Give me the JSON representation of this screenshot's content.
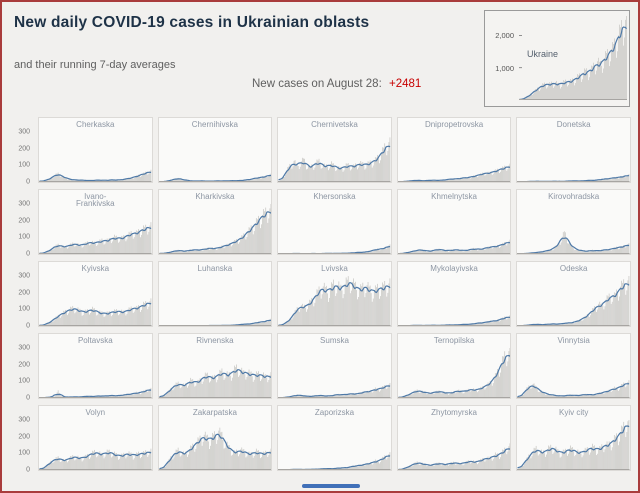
{
  "header": {
    "title": "New daily COVID-19 cases in Ukrainian oblasts",
    "subtitle": "and their running 7-day averages",
    "new_cases_label": "New cases on August 28:",
    "new_cases_value": "+2481"
  },
  "colors": {
    "bar": "#c8c7c4",
    "line": "#4e79a7",
    "oblast_label": "#8d96a3",
    "red_value": "#c70000",
    "page_border": "#a93c3c"
  },
  "chart_data": {
    "type": "bar",
    "description": "Small-multiple daily case bars with 7-day average line per oblast",
    "ukraine": {
      "label": "Ukraine",
      "y_ticks": [
        "2,000",
        "1,000"
      ],
      "ymax": 2600,
      "values": [
        5,
        20,
        60,
        120,
        200,
        280,
        350,
        420,
        480,
        510,
        490,
        530,
        550,
        480,
        520,
        560,
        600,
        580,
        620,
        700,
        750,
        820,
        900,
        880,
        950,
        1100,
        1200,
        1100,
        1250,
        1400,
        1500,
        1600,
        1800,
        2000,
        2250,
        2481
      ]
    },
    "small_axis_ticks": [
      "300",
      "200",
      "100",
      "0"
    ],
    "small_ymax": 320,
    "oblasts": [
      {
        "name": "Cherkaska",
        "values": [
          3,
          6,
          10,
          18,
          30,
          45,
          55,
          45,
          30,
          22,
          18,
          14,
          12,
          14,
          12,
          10,
          9,
          10,
          12,
          14,
          12,
          10,
          12,
          15,
          14,
          12,
          15,
          18,
          22,
          25,
          30,
          38,
          45,
          50,
          60,
          70
        ]
      },
      {
        "name": "Chernihivska",
        "values": [
          1,
          2,
          4,
          8,
          14,
          20,
          24,
          20,
          14,
          10,
          8,
          6,
          6,
          8,
          7,
          6,
          5,
          6,
          7,
          8,
          7,
          6,
          8,
          10,
          9,
          8,
          10,
          12,
          14,
          18,
          22,
          26,
          32,
          28,
          38,
          48
        ]
      },
      {
        "name": "Chernivetska",
        "values": [
          4,
          15,
          45,
          85,
          115,
          135,
          105,
          125,
          145,
          115,
          95,
          105,
          125,
          135,
          115,
          100,
          108,
          118,
          104,
          92,
          88,
          96,
          112,
          106,
          100,
          112,
          122,
          116,
          112,
          122,
          132,
          142,
          165,
          185,
          225,
          255
        ]
      },
      {
        "name": "Dnipropetrovska",
        "values": [
          1,
          2,
          4,
          6,
          8,
          10,
          12,
          10,
          8,
          9,
          11,
          13,
          12,
          10,
          12,
          15,
          18,
          20,
          22,
          20,
          25,
          30,
          28,
          32,
          38,
          42,
          48,
          55,
          60,
          58,
          65,
          72,
          80,
          85,
          95,
          105
        ]
      },
      {
        "name": "Donetska",
        "values": [
          0,
          1,
          2,
          3,
          4,
          5,
          6,
          5,
          4,
          3,
          4,
          5,
          6,
          5,
          4,
          5,
          6,
          7,
          8,
          7,
          6,
          8,
          10,
          12,
          10,
          12,
          15,
          18,
          20,
          22,
          25,
          28,
          32,
          30,
          38,
          46
        ]
      },
      {
        "name": "Ivano-\nFrankivska",
        "values": [
          2,
          5,
          10,
          20,
          35,
          50,
          60,
          55,
          45,
          50,
          60,
          70,
          65,
          55,
          60,
          70,
          80,
          75,
          70,
          80,
          90,
          85,
          90,
          100,
          110,
          105,
          100,
          110,
          120,
          130,
          140,
          135,
          150,
          160,
          170,
          182
        ]
      },
      {
        "name": "Kharkivska",
        "values": [
          2,
          4,
          6,
          10,
          15,
          20,
          25,
          22,
          18,
          20,
          25,
          30,
          28,
          25,
          30,
          35,
          40,
          38,
          35,
          40,
          50,
          55,
          60,
          70,
          80,
          90,
          100,
          120,
          140,
          160,
          180,
          205,
          230,
          250,
          270,
          292
        ]
      },
      {
        "name": "Khersonska",
        "values": [
          0,
          1,
          1,
          2,
          3,
          3,
          4,
          3,
          2,
          2,
          3,
          4,
          3,
          2,
          3,
          4,
          5,
          4,
          3,
          4,
          5,
          6,
          5,
          6,
          8,
          10,
          12,
          10,
          14,
          18,
          22,
          28,
          35,
          30,
          40,
          55
        ]
      },
      {
        "name": "Khmelnytska",
        "values": [
          1,
          3,
          6,
          10,
          15,
          20,
          25,
          30,
          25,
          20,
          18,
          22,
          28,
          32,
          28,
          24,
          20,
          25,
          30,
          28,
          25,
          22,
          25,
          30,
          35,
          32,
          30,
          35,
          40,
          45,
          50,
          48,
          55,
          60,
          70,
          82
        ]
      },
      {
        "name": "Kirovohradska",
        "values": [
          0,
          1,
          2,
          4,
          6,
          8,
          10,
          12,
          15,
          20,
          25,
          30,
          42,
          62,
          95,
          140,
          98,
          60,
          40,
          30,
          25,
          20,
          18,
          20,
          25,
          22,
          20,
          25,
          30,
          28,
          32,
          38,
          45,
          42,
          52,
          62
        ]
      },
      {
        "name": "Kyivska",
        "values": [
          2,
          5,
          10,
          20,
          35,
          50,
          65,
          80,
          90,
          100,
          110,
          120,
          110,
          100,
          90,
          95,
          105,
          110,
          100,
          90,
          85,
          80,
          85,
          90,
          95,
          100,
          95,
          90,
          100,
          110,
          120,
          115,
          125,
          135,
          145,
          158
        ]
      },
      {
        "name": "Luhanska",
        "values": [
          0,
          0,
          1,
          1,
          2,
          2,
          3,
          2,
          2,
          1,
          2,
          2,
          3,
          3,
          2,
          2,
          3,
          4,
          3,
          3,
          4,
          5,
          4,
          5,
          6,
          8,
          10,
          12,
          15,
          12,
          18,
          22,
          28,
          25,
          32,
          42
        ]
      },
      {
        "name": "Lvivska",
        "values": [
          2,
          5,
          15,
          30,
          50,
          80,
          110,
          140,
          120,
          130,
          150,
          170,
          200,
          230,
          260,
          240,
          220,
          250,
          280,
          262,
          240,
          262,
          285,
          300,
          272,
          250,
          232,
          252,
          270,
          242,
          222,
          232,
          252,
          242,
          262,
          272
        ]
      },
      {
        "name": "Mykolayivska",
        "values": [
          0,
          0,
          1,
          2,
          3,
          4,
          5,
          4,
          3,
          4,
          5,
          6,
          5,
          4,
          5,
          6,
          8,
          7,
          6,
          8,
          10,
          12,
          10,
          12,
          15,
          18,
          22,
          20,
          25,
          30,
          35,
          32,
          40,
          45,
          55,
          62
        ]
      },
      {
        "name": "Odeska",
        "values": [
          1,
          2,
          3,
          5,
          8,
          10,
          12,
          10,
          8,
          10,
          12,
          15,
          14,
          12,
          15,
          18,
          22,
          20,
          25,
          30,
          40,
          50,
          62,
          82,
          102,
          122,
          142,
          132,
          162,
          182,
          202,
          192,
          222,
          252,
          272,
          292
        ]
      },
      {
        "name": "Poltavska",
        "values": [
          1,
          2,
          3,
          5,
          8,
          12,
          45,
          15,
          6,
          5,
          6,
          9,
          7,
          6,
          9,
          13,
          11,
          9,
          11,
          16,
          13,
          11,
          15,
          19,
          16,
          13,
          17,
          21,
          26,
          23,
          30,
          36,
          32,
          40,
          48,
          58
        ]
      },
      {
        "name": "Rivnenska",
        "values": [
          3,
          10,
          25,
          45,
          65,
          85,
          95,
          88,
          80,
          95,
          115,
          108,
          98,
          115,
          135,
          150,
          142,
          128,
          138,
          155,
          172,
          162,
          148,
          158,
          185,
          200,
          178,
          162,
          172,
          158,
          148,
          152,
          158,
          150,
          138,
          148
        ]
      },
      {
        "name": "Sumska",
        "values": [
          1,
          2,
          4,
          6,
          10,
          15,
          20,
          18,
          15,
          12,
          10,
          12,
          15,
          18,
          16,
          14,
          12,
          15,
          20,
          25,
          22,
          20,
          25,
          30,
          28,
          25,
          30,
          38,
          45,
          40,
          50,
          60,
          55,
          65,
          75,
          86
        ]
      },
      {
        "name": "Ternopilska",
        "values": [
          2,
          5,
          10,
          20,
          30,
          40,
          50,
          45,
          40,
          35,
          30,
          35,
          40,
          45,
          40,
          35,
          30,
          35,
          40,
          50,
          45,
          40,
          50,
          60,
          55,
          50,
          60,
          70,
          82,
          92,
          112,
          142,
          182,
          222,
          272,
          300
        ]
      },
      {
        "name": "Vinnytsia",
        "values": [
          2,
          10,
          30,
          60,
          80,
          90,
          70,
          50,
          40,
          30,
          25,
          20,
          18,
          15,
          12,
          15,
          18,
          20,
          18,
          15,
          18,
          22,
          25,
          22,
          20,
          25,
          30,
          35,
          40,
          45,
          55,
          65,
          60,
          75,
          90,
          102
        ]
      },
      {
        "name": "Volyn",
        "values": [
          2,
          8,
          20,
          40,
          60,
          70,
          80,
          70,
          60,
          70,
          80,
          90,
          85,
          75,
          80,
          90,
          100,
          110,
          120,
          110,
          100,
          110,
          120,
          115,
          105,
          95,
          90,
          100,
          110,
          105,
          95,
          100,
          110,
          105,
          115,
          122
        ]
      },
      {
        "name": "Zakarpatska",
        "values": [
          2,
          10,
          30,
          60,
          90,
          110,
          130,
          120,
          100,
          120,
          140,
          160,
          180,
          200,
          232,
          212,
          192,
          212,
          232,
          252,
          222,
          182,
          152,
          132,
          112,
          122,
          132,
          122,
          112,
          102,
          112,
          122,
          112,
          102,
          112,
          122
        ]
      },
      {
        "name": "Zaporizska",
        "values": [
          0,
          1,
          1,
          2,
          3,
          4,
          5,
          4,
          3,
          4,
          5,
          6,
          5,
          6,
          8,
          10,
          9,
          8,
          10,
          12,
          15,
          14,
          16,
          20,
          25,
          30,
          28,
          35,
          42,
          40,
          50,
          60,
          55,
          70,
          85,
          102
        ]
      },
      {
        "name": "Zhytomyrska",
        "values": [
          1,
          4,
          10,
          20,
          30,
          40,
          50,
          45,
          40,
          35,
          30,
          35,
          40,
          45,
          40,
          35,
          40,
          45,
          50,
          45,
          40,
          45,
          55,
          60,
          55,
          50,
          60,
          70,
          80,
          75,
          85,
          100,
          95,
          110,
          130,
          152
        ]
      },
      {
        "name": "Kyiv city",
        "values": [
          5,
          15,
          40,
          70,
          100,
          120,
          140,
          130,
          110,
          120,
          140,
          150,
          140,
          120,
          110,
          120,
          130,
          140,
          130,
          120,
          110,
          120,
          130,
          140,
          150,
          140,
          130,
          150,
          170,
          160,
          180,
          200,
          220,
          240,
          280,
          312
        ]
      }
    ]
  }
}
